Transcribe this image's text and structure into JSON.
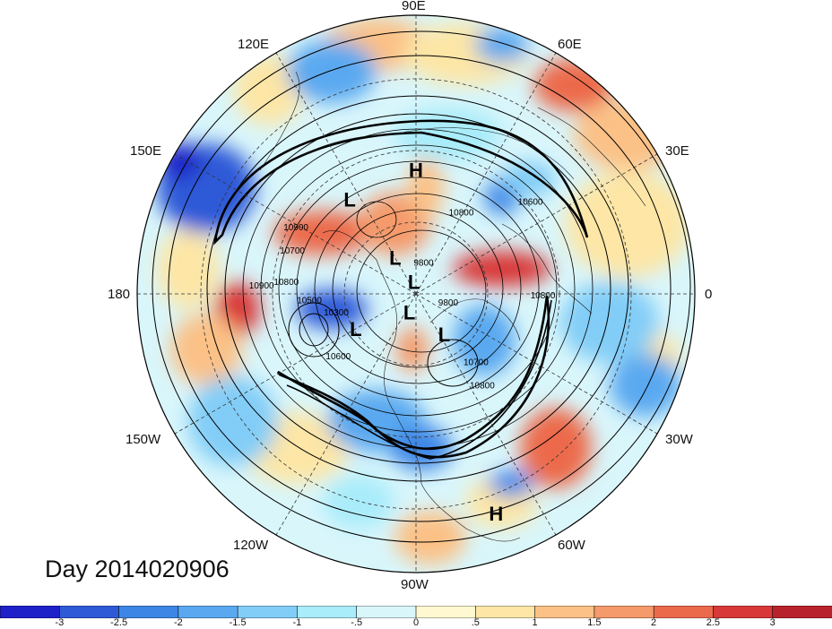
{
  "title": "Day 2014020906",
  "lon_labels": {
    "n": "90E",
    "ne1": "60E",
    "e1": "30E",
    "e": "0",
    "se1": "30W",
    "se2": "60W",
    "s": "90W",
    "sw1": "120W",
    "sw2": "150W",
    "w": "180",
    "nw1": "150E",
    "nw2": "120E"
  },
  "pressure_centers": [
    {
      "label": "L",
      "lon": 125,
      "lat": 45
    },
    {
      "label": "H",
      "lon": 90,
      "lat": 42
    },
    {
      "label": "L",
      "lon": 120,
      "lat": 73
    },
    {
      "label": "L",
      "lon": 100,
      "lat": 85
    },
    {
      "label": "L",
      "lon": -150,
      "lat": 62
    },
    {
      "label": "L",
      "lon": -110,
      "lat": 82
    },
    {
      "label": "L",
      "lon": -55,
      "lat": 70
    },
    {
      "label": "H",
      "lon": -70,
      "lat": 10
    }
  ],
  "contour_labels": [
    {
      "text": "10900",
      "lon": 152,
      "lat": 38
    },
    {
      "text": "10700",
      "lon": 162,
      "lat": 40
    },
    {
      "text": "10600",
      "lon": 38,
      "lat": 35
    },
    {
      "text": "9800",
      "lon": 75,
      "lat": 78
    },
    {
      "text": "10900",
      "lon": 178,
      "lat": 32
    },
    {
      "text": "10800",
      "lon": 176,
      "lat": 40
    },
    {
      "text": "10500",
      "lon": -175,
      "lat": 48
    },
    {
      "text": "10300",
      "lon": -165,
      "lat": 57
    },
    {
      "text": "9800",
      "lon": -20,
      "lat": 76
    },
    {
      "text": "10800",
      "lon": -2,
      "lat": 41
    },
    {
      "text": "10600",
      "lon": -140,
      "lat": 50
    },
    {
      "text": "10700",
      "lon": -50,
      "lat": 53
    },
    {
      "text": "10800",
      "lon": -55,
      "lat": 45
    },
    {
      "text": "10800",
      "lon": 60,
      "lat": 54
    }
  ],
  "colorbar": {
    "colors": [
      "#1e20c8",
      "#2e5ad8",
      "#3e86e6",
      "#5aa9f0",
      "#82cdf7",
      "#a9ecfa",
      "#d9f6fb",
      "#fff8d0",
      "#fde6a6",
      "#fbc186",
      "#f59a6a",
      "#ec6a4c",
      "#d93838",
      "#b8222c"
    ],
    "ticks": [
      "-3",
      "-2.5",
      "-2",
      "-1.5",
      "-1",
      "-.5",
      "0",
      ".5",
      "1",
      "1.5",
      "2",
      "2.5",
      "3"
    ]
  }
}
